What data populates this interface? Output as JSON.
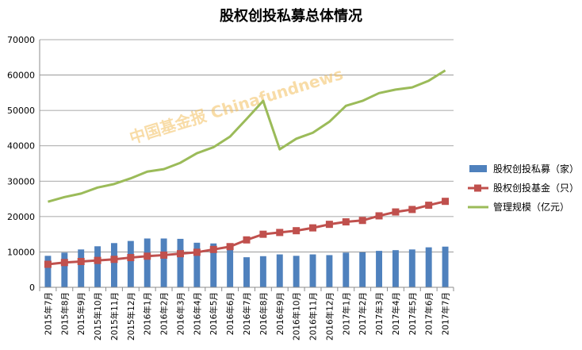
{
  "chart_data": {
    "type": "bar",
    "title": "股权创投私募总体情况",
    "categories": [
      "2015年7月",
      "2015年8月",
      "2015年9月",
      "2015年10月",
      "2015年11月",
      "2015年12月",
      "2016年1月",
      "2016年2月",
      "2016年3月",
      "2016年4月",
      "2016年5月",
      "2016年6月",
      "2016年7月",
      "2016年8月",
      "2016年9月",
      "2016年10月",
      "2016年11月",
      "2016年12月",
      "2017年1月",
      "2017年2月",
      "2017年3月",
      "2017年4月",
      "2017年5月",
      "2017年6月",
      "2017年7月"
    ],
    "ylim": [
      0,
      70000
    ],
    "yticks": [
      "0",
      "10000",
      "20000",
      "30000",
      "40000",
      "50000",
      "60000",
      "70000"
    ],
    "grid": true,
    "legend_position": "right",
    "series": [
      {
        "name": "股权创投私募（家）",
        "type": "bar",
        "color": "#4f81bd",
        "values": [
          8900,
          9800,
          10700,
          11600,
          12500,
          13100,
          13800,
          13800,
          13700,
          12600,
          12400,
          12200,
          8500,
          8800,
          9300,
          8900,
          9300,
          9100,
          9800,
          9900,
          10300,
          10500,
          10700,
          11300,
          11500
        ]
      },
      {
        "name": "股权创投基金（只）",
        "type": "line",
        "marker": "square",
        "color": "#c0504d",
        "values": [
          6500,
          7000,
          7300,
          7600,
          7900,
          8400,
          8800,
          9100,
          9500,
          9900,
          10700,
          11500,
          13400,
          15000,
          15500,
          16000,
          16800,
          17800,
          18500,
          18900,
          20200,
          21300,
          22000,
          23200,
          24300
        ]
      },
      {
        "name": "管理规模（亿元）",
        "type": "line",
        "color": "#9bbb59",
        "values": [
          24200,
          25500,
          26500,
          28200,
          29200,
          30800,
          32700,
          33400,
          35200,
          37900,
          39600,
          42600,
          47600,
          52700,
          39000,
          42000,
          43700,
          46800,
          51300,
          52700,
          54900,
          55900,
          56500,
          58400,
          61300
        ]
      }
    ],
    "watermark": "中国基金报 Chinafundnews"
  }
}
